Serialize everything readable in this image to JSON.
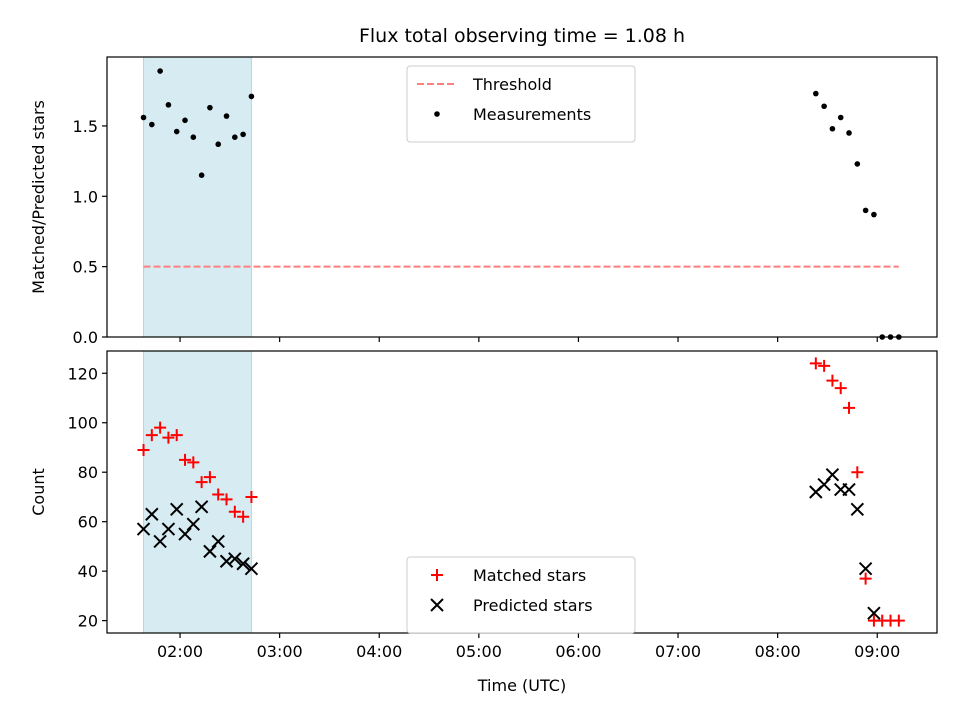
{
  "chart_data": [
    {
      "type": "scatter",
      "title": "Flux total observing time = 1.08 h",
      "ylabel": "Matched/Predicted stars",
      "xlabel": "",
      "xlim": [
        "01:16",
        "09:36"
      ],
      "ylim": [
        0,
        1.99
      ],
      "xticks": [
        "02:00",
        "03:00",
        "04:00",
        "05:00",
        "06:00",
        "07:00",
        "08:00",
        "09:00"
      ],
      "yticks": [
        0.0,
        0.5,
        1.0,
        1.5
      ],
      "ytick_labels": [
        "0.0",
        "0.5",
        "1.0",
        "1.5"
      ],
      "shaded_span": [
        "01:38",
        "02:43"
      ],
      "threshold": {
        "name": "Threshold",
        "value": 0.5,
        "x_range": [
          "01:38",
          "09:13"
        ],
        "color": "#ff7f7f"
      },
      "legend_position": "top-center",
      "series": [
        {
          "name": "Measurements",
          "color": "#000000",
          "points": [
            [
              "01:38",
              1.56
            ],
            [
              "01:43",
              1.51
            ],
            [
              "01:48",
              1.89
            ],
            [
              "01:53",
              1.65
            ],
            [
              "01:58",
              1.46
            ],
            [
              "02:03",
              1.54
            ],
            [
              "02:08",
              1.42
            ],
            [
              "02:13",
              1.15
            ],
            [
              "02:18",
              1.63
            ],
            [
              "02:23",
              1.37
            ],
            [
              "02:28",
              1.57
            ],
            [
              "02:33",
              1.42
            ],
            [
              "02:38",
              1.44
            ],
            [
              "02:43",
              1.71
            ],
            [
              "08:23",
              1.73
            ],
            [
              "08:28",
              1.64
            ],
            [
              "08:33",
              1.48
            ],
            [
              "08:38",
              1.56
            ],
            [
              "08:43",
              1.45
            ],
            [
              "08:48",
              1.23
            ],
            [
              "08:53",
              0.9
            ],
            [
              "08:58",
              0.87
            ],
            [
              "09:03",
              0.0
            ],
            [
              "09:08",
              0.0
            ],
            [
              "09:13",
              0.0
            ]
          ]
        }
      ]
    },
    {
      "type": "scatter",
      "title": "",
      "ylabel": "Count",
      "xlabel": "Time (UTC)",
      "xlim": [
        "01:16",
        "09:36"
      ],
      "ylim": [
        15,
        129
      ],
      "xticks": [
        "02:00",
        "03:00",
        "04:00",
        "05:00",
        "06:00",
        "07:00",
        "08:00",
        "09:00"
      ],
      "yticks": [
        20,
        40,
        60,
        80,
        100,
        120
      ],
      "ytick_labels": [
        "20",
        "40",
        "60",
        "80",
        "100",
        "120"
      ],
      "shaded_span": [
        "01:38",
        "02:43"
      ],
      "legend_position": "bottom-center",
      "series": [
        {
          "name": "Matched stars",
          "marker": "plus",
          "color": "#ff0000",
          "points": [
            [
              "01:38",
              89
            ],
            [
              "01:43",
              95
            ],
            [
              "01:48",
              98
            ],
            [
              "01:53",
              94
            ],
            [
              "01:58",
              95
            ],
            [
              "02:03",
              85
            ],
            [
              "02:08",
              84
            ],
            [
              "02:13",
              76
            ],
            [
              "02:18",
              78
            ],
            [
              "02:23",
              71
            ],
            [
              "02:28",
              69
            ],
            [
              "02:33",
              64
            ],
            [
              "02:38",
              62
            ],
            [
              "02:43",
              70
            ],
            [
              "08:23",
              124
            ],
            [
              "08:28",
              123
            ],
            [
              "08:33",
              117
            ],
            [
              "08:38",
              114
            ],
            [
              "08:43",
              106
            ],
            [
              "08:48",
              80
            ],
            [
              "08:53",
              37
            ],
            [
              "08:58",
              20
            ],
            [
              "09:03",
              20
            ],
            [
              "09:08",
              20
            ],
            [
              "09:13",
              20
            ]
          ]
        },
        {
          "name": "Predicted stars",
          "marker": "x",
          "color": "#000000",
          "points": [
            [
              "01:38",
              57
            ],
            [
              "01:43",
              63
            ],
            [
              "01:48",
              52
            ],
            [
              "01:53",
              57
            ],
            [
              "01:58",
              65
            ],
            [
              "02:03",
              55
            ],
            [
              "02:08",
              59
            ],
            [
              "02:13",
              66
            ],
            [
              "02:18",
              48
            ],
            [
              "02:23",
              52
            ],
            [
              "02:28",
              44
            ],
            [
              "02:33",
              45
            ],
            [
              "02:38",
              43
            ],
            [
              "02:43",
              41
            ],
            [
              "08:23",
              72
            ],
            [
              "08:28",
              75
            ],
            [
              "08:33",
              79
            ],
            [
              "08:38",
              73
            ],
            [
              "08:43",
              73
            ],
            [
              "08:48",
              65
            ],
            [
              "08:53",
              41
            ],
            [
              "08:58",
              23
            ]
          ]
        }
      ]
    }
  ],
  "colors": {
    "shade": "#add8e6",
    "threshold": "#ff7f7f",
    "matched": "#ff0000",
    "predicted": "#000000"
  }
}
